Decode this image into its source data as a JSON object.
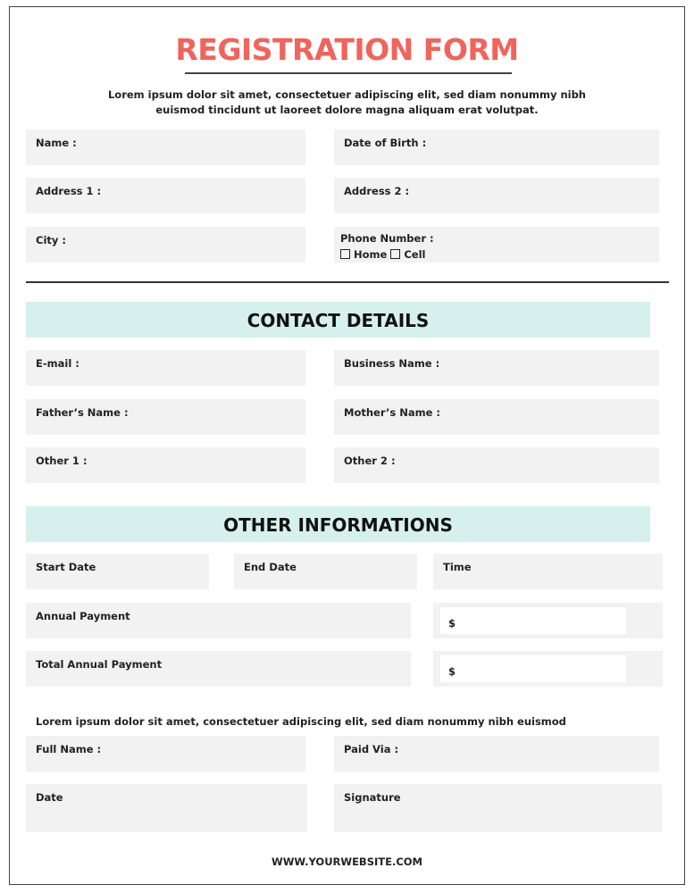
{
  "title": "REGISTRATION FORM",
  "intro": "Lorem ipsum dolor sit amet, consectetuer adipiscing elit, sed diam nonummy nibh euismod tincidunt ut laoreet dolore magna aliquam erat volutpat.",
  "personal": {
    "name": "Name :",
    "dob": "Date of Birth :",
    "address1": "Address 1 :",
    "address2": "Address 2 :",
    "city": "City :",
    "phone": "Phone Number :",
    "home": "Home",
    "cell": "Cell"
  },
  "contact": {
    "heading": "CONTACT DETAILS",
    "email": "E-mail :",
    "business": "Business Name :",
    "father": "Father’s Name :",
    "mother": "Mother’s Name :",
    "other1": "Other 1 :",
    "other2": "Other 2 :"
  },
  "other": {
    "heading": "OTHER INFORMATIONS",
    "start": "Start Date",
    "end": "End Date",
    "time": "Time",
    "annual": "Annual Payment",
    "total": "Total Annual Payment",
    "currency": "$"
  },
  "note": "Lorem ipsum dolor sit amet, consectetuer adipiscing elit, sed diam nonummy nibh euismod",
  "payment": {
    "fullname": "Full Name :",
    "paidvia": "Paid Via :",
    "date": "Date",
    "signature": "Signature"
  },
  "footer": "WWW.YOURWEBSITE.COM",
  "colors": {
    "title": "#f2635a",
    "banner": "#d6f1ed",
    "field": "#f2f2f2"
  }
}
